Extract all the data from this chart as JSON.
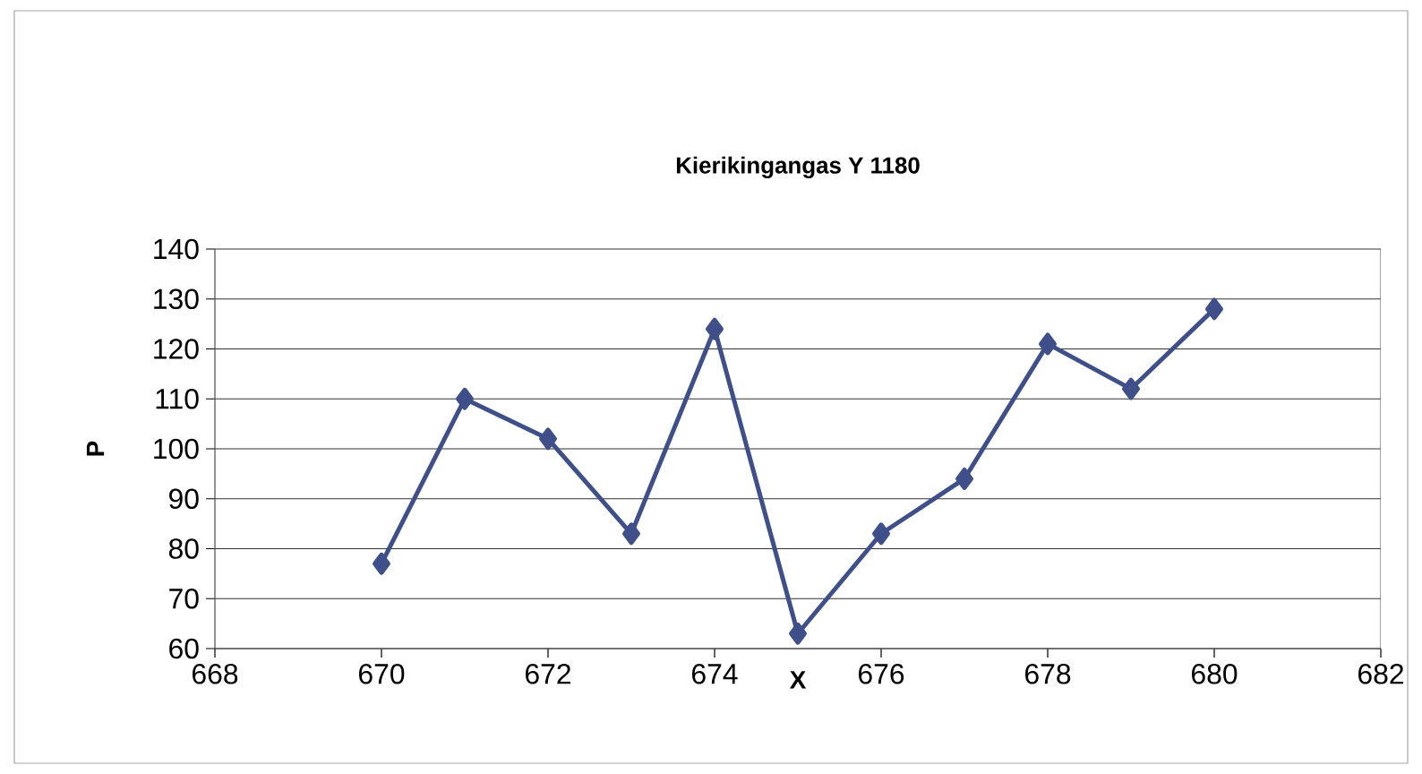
{
  "chart_data": {
    "type": "line",
    "title": "Kierikingangas Y 1180",
    "xlabel": "X",
    "ylabel": "P",
    "x": [
      670,
      671,
      672,
      673,
      674,
      675,
      676,
      677,
      678,
      679,
      680
    ],
    "series": [
      {
        "color": "#3f4f8a",
        "values": [
          77,
          110,
          102,
          83,
          124,
          63,
          83,
          94,
          121,
          112,
          128
        ]
      }
    ],
    "xlim": [
      668,
      682
    ],
    "xticks": [
      668,
      670,
      672,
      674,
      676,
      678,
      680,
      682
    ],
    "ylim": [
      60,
      140
    ],
    "yticks": [
      60,
      70,
      80,
      90,
      100,
      110,
      120,
      130,
      140
    ],
    "grid": "y",
    "marker": "diamond",
    "line_style": "solid"
  }
}
